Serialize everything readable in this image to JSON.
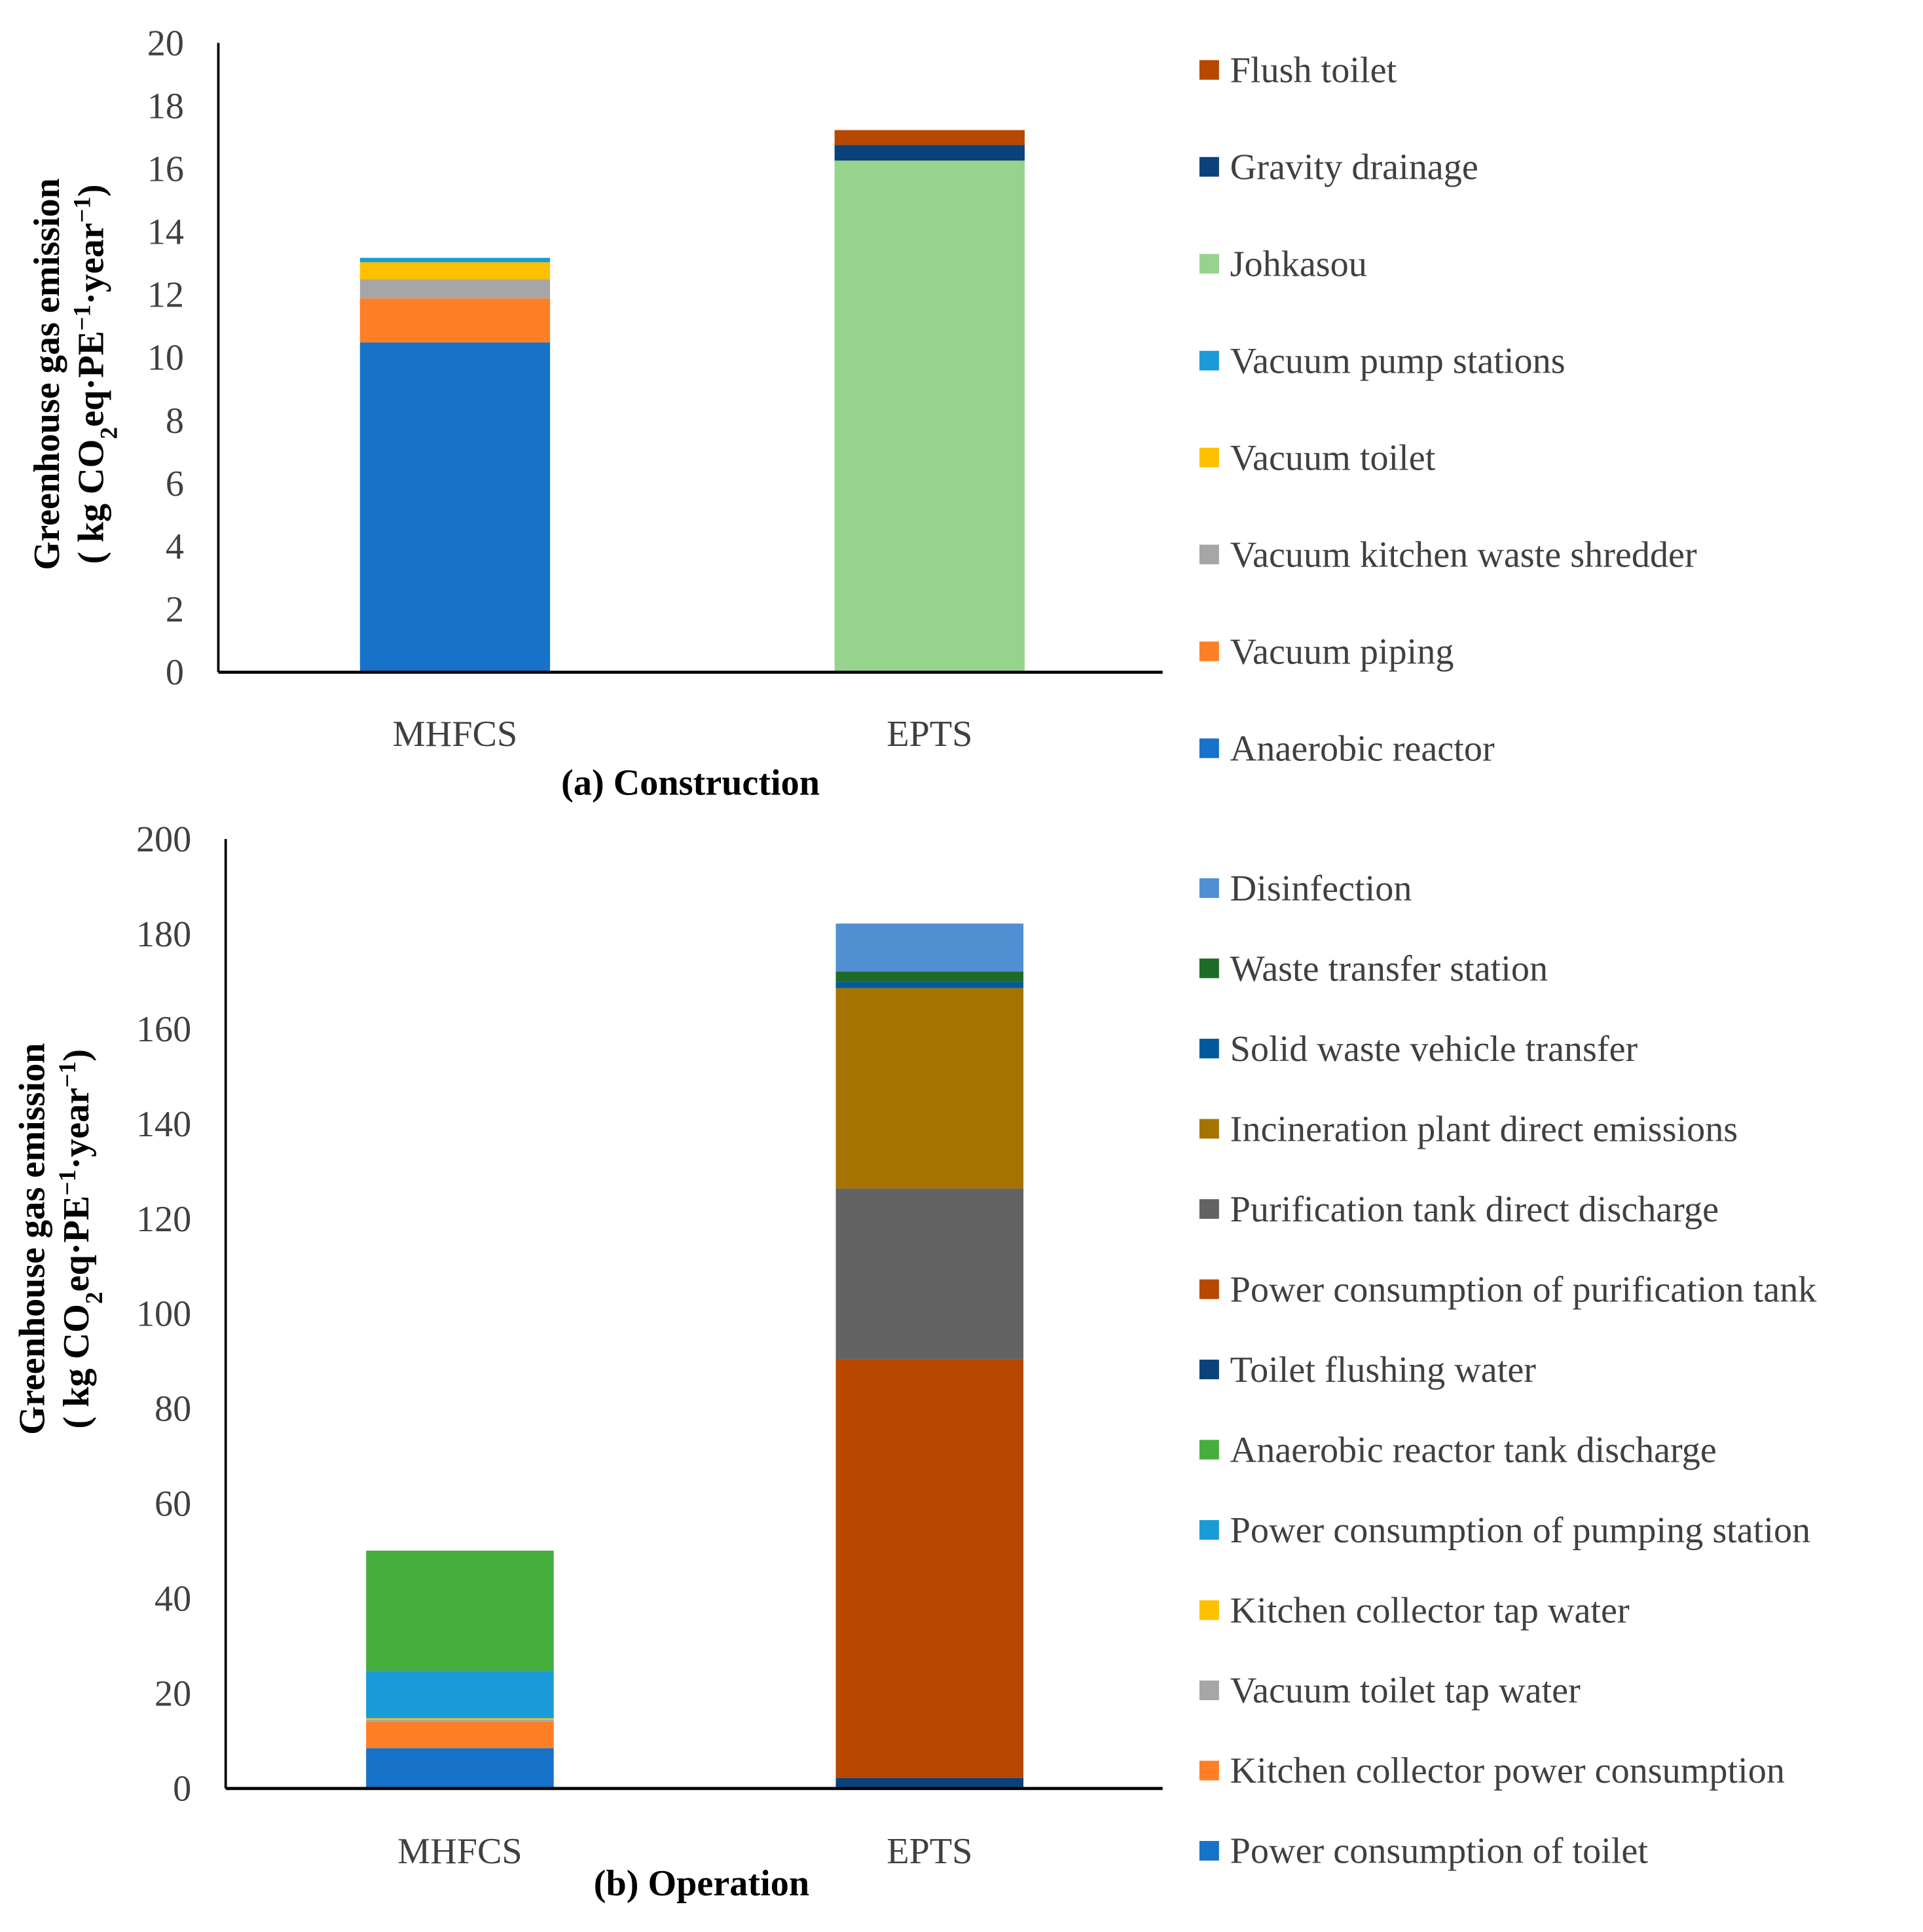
{
  "chart_data": [
    {
      "type": "bar",
      "stacked": true,
      "title": "(a) Construction",
      "ylabel_main": "Greenhouse gas emission",
      "ylabel_unit": {
        "open": "( kg CO",
        "sub": "2",
        "mid": "eq·PE",
        "sup1": "−1",
        "mid2": "·year",
        "sup2": "−1",
        "close": ")"
      },
      "categories": [
        "MHFCS",
        "EPTS"
      ],
      "ylim": [
        0,
        20
      ],
      "yticks": [
        "0",
        "2",
        "4",
        "6",
        "8",
        "10",
        "12",
        "14",
        "16",
        "18",
        "20"
      ],
      "legend_position": "right",
      "series": [
        {
          "name": "Anaerobic reactor",
          "color": "#1772C9",
          "values": [
            10.48,
            0
          ]
        },
        {
          "name": "Vacuum piping",
          "color": "#FF7F27",
          "values": [
            1.4,
            0
          ]
        },
        {
          "name": "Vacuum kitchen waste shredder",
          "color": "#A6A6A6",
          "values": [
            0.61,
            0
          ]
        },
        {
          "name": "Vacuum toilet",
          "color": "#FFC000",
          "values": [
            0.54,
            0
          ]
        },
        {
          "name": "Vacuum pump stations",
          "color": "#1A9BD7",
          "values": [
            0.14,
            0
          ]
        },
        {
          "name": "Johkasou",
          "color": "#96D38C",
          "values": [
            0,
            16.26
          ]
        },
        {
          "name": "Gravity drainage",
          "color": "#0B4279",
          "values": [
            0,
            0.5
          ]
        },
        {
          "name": "Flush toilet",
          "color": "#B84700",
          "values": [
            0,
            0.47
          ]
        }
      ]
    },
    {
      "type": "bar",
      "stacked": true,
      "title": "(b) Operation",
      "ylabel_main": "Greenhouse gas emission",
      "ylabel_unit": {
        "open": "( kg CO",
        "sub": "2",
        "mid": "eq·PE",
        "sup1": "−1",
        "mid2": "·year",
        "sup2": "−1",
        "close": ")"
      },
      "categories": [
        "MHFCS",
        "EPTS"
      ],
      "ylim": [
        0,
        200
      ],
      "yticks": [
        "0",
        "20",
        "40",
        "60",
        "80",
        "100",
        "120",
        "140",
        "160",
        "180",
        "200"
      ],
      "legend_position": "right",
      "series": [
        {
          "name": "Power consumption of toilet",
          "color": "#1772C9",
          "values": [
            8.5,
            0
          ]
        },
        {
          "name": "Kitchen collector power consumption",
          "color": "#FF7F27",
          "values": [
            5.6,
            0
          ]
        },
        {
          "name": "Vacuum toilet tap water",
          "color": "#A6A6A6",
          "values": [
            0.4,
            0
          ]
        },
        {
          "name": "Kitchen collector tap water",
          "color": "#FFC000",
          "values": [
            0.3,
            0
          ]
        },
        {
          "name": "Power consumption of pumping station",
          "color": "#1A9BD7",
          "values": [
            10.0,
            0
          ]
        },
        {
          "name": "Anaerobic reactor tank discharge",
          "color": "#46AF3C",
          "values": [
            25.3,
            0
          ]
        },
        {
          "name": "Toilet flushing water",
          "color": "#0B4279",
          "values": [
            0,
            2.2
          ]
        },
        {
          "name": "Power consumption of purification tank",
          "color": "#B84700",
          "values": [
            0,
            88.2
          ]
        },
        {
          "name": "Purification tank direct discharge",
          "color": "#636363",
          "values": [
            0,
            36.0
          ]
        },
        {
          "name": "Incineration plant direct emissions",
          "color": "#A57400",
          "values": [
            0,
            42.2
          ]
        },
        {
          "name": "Solid waste vehicle transfer",
          "color": "#005A9C",
          "values": [
            0,
            1.3
          ]
        },
        {
          "name": "Waste transfer station",
          "color": "#1E6B28",
          "values": [
            0,
            2.2
          ]
        },
        {
          "name": "Disinfection",
          "color": "#518FD3",
          "values": [
            0,
            10.1
          ]
        }
      ]
    }
  ]
}
